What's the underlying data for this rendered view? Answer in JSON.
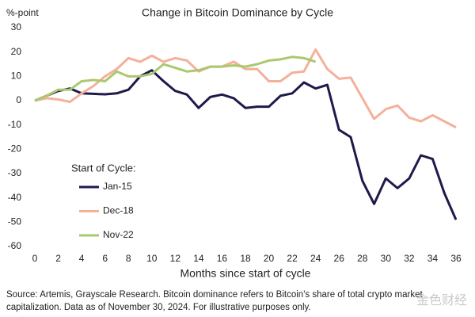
{
  "chart_data": {
    "type": "line",
    "title": "Change in Bitcoin Dominance by Cycle",
    "y_label": "%-point",
    "x_label": "Months since start of cycle",
    "legend_title": "Start of Cycle:",
    "notes": [
      "Source: Artemis, Grayscale Research. Bitcoin dominance refers to Bitcoin's share of total crypto market",
      "capitalization. Data as of November 30, 2024. For illustrative purposes only."
    ],
    "watermark": "金色财经",
    "x": [
      0,
      1,
      2,
      3,
      4,
      5,
      6,
      7,
      8,
      9,
      10,
      11,
      12,
      13,
      14,
      15,
      16,
      17,
      18,
      19,
      20,
      21,
      22,
      23,
      24,
      25,
      26,
      27,
      28,
      29,
      30,
      31,
      32,
      33,
      34,
      35,
      36
    ],
    "xlim": [
      0,
      36
    ],
    "xticks": [
      0,
      2,
      4,
      6,
      8,
      10,
      12,
      14,
      16,
      18,
      20,
      22,
      24,
      26,
      28,
      30,
      32,
      34,
      36
    ],
    "ylim": [
      -60,
      30
    ],
    "yticks": [
      -60,
      -50,
      -40,
      -30,
      -20,
      -10,
      0,
      10,
      20,
      30
    ],
    "series": [
      {
        "name": "Jan-15",
        "color": "#1f1a4a",
        "values": [
          0,
          2,
          4,
          5,
          3,
          2.8,
          2.6,
          3,
          4.5,
          10,
          12.5,
          8,
          4,
          2.5,
          -3,
          1.5,
          2.5,
          1,
          -3,
          -2.5,
          -2.5,
          2,
          3,
          7.5,
          5,
          6.5,
          -12,
          -15,
          -33,
          -42.5,
          -32,
          -36,
          -32,
          -22.5,
          -24,
          -38,
          -49
        ]
      },
      {
        "name": "Dec-18",
        "color": "#f4b09a",
        "values": [
          0,
          1,
          0.5,
          -0.5,
          3,
          6,
          10,
          13,
          17.5,
          16,
          18.5,
          16,
          17.5,
          16.5,
          12,
          14,
          14,
          16,
          13,
          13,
          8,
          8,
          11.5,
          12,
          21,
          13,
          9,
          9.5,
          1,
          -7.5,
          -3.5,
          -2,
          -7,
          -8.5,
          -6,
          -8.5,
          -11
        ]
      },
      {
        "name": "Nov-22",
        "color": "#a9c96e",
        "values": [
          0,
          2,
          4.5,
          4.5,
          8,
          8.5,
          8,
          12,
          10,
          10,
          11,
          15,
          13.5,
          12,
          12.5,
          14,
          14,
          14.5,
          14,
          15,
          16.5,
          17,
          18,
          17.5,
          16,
          null,
          null,
          null,
          null,
          null,
          null,
          null,
          null,
          null,
          null,
          null,
          null
        ]
      }
    ]
  }
}
